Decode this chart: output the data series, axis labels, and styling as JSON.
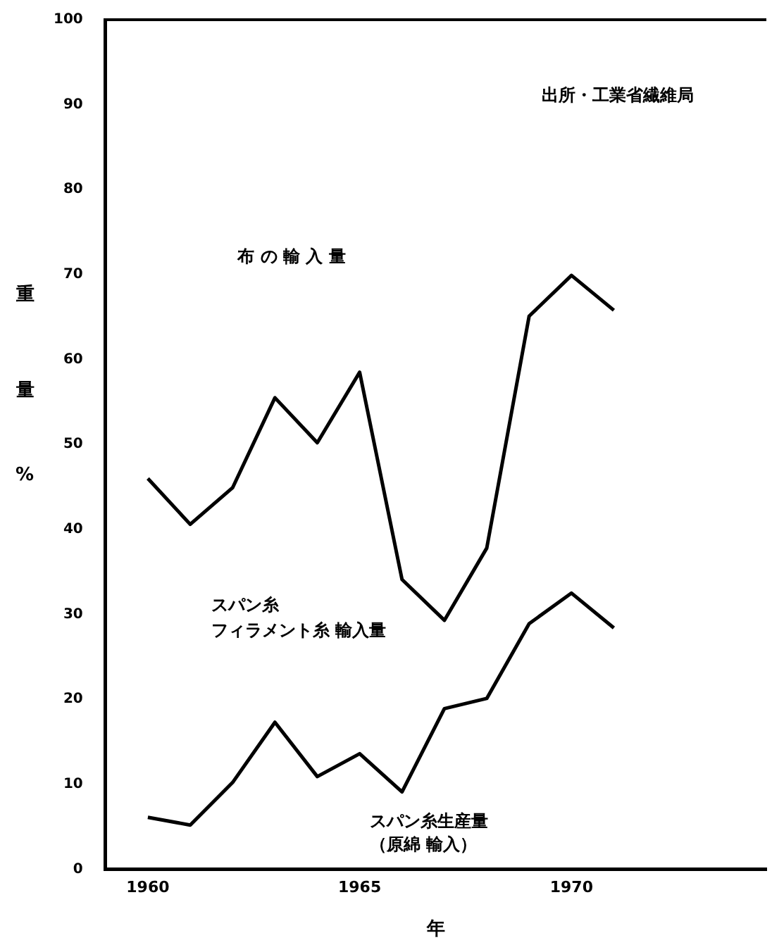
{
  "chart_data": {
    "type": "line",
    "ylabel": "重量%",
    "xlabel": "年",
    "x": [
      1960,
      1961,
      1962,
      1963,
      1964,
      1965,
      1966,
      1967,
      1968,
      1969,
      1970,
      1971
    ],
    "series": [
      {
        "color": "#000000",
        "values": [
          46,
          40.6,
          44.9,
          55.5,
          50.2,
          58.5,
          34.1,
          29.3,
          37.8,
          65.1,
          69.9,
          65.8
        ]
      },
      {
        "color": "#000000",
        "values": [
          6.1,
          5.2,
          10.2,
          17.3,
          10.9,
          13.6,
          9.1,
          18.9,
          20.1,
          28.9,
          32.5,
          28.4
        ]
      }
    ],
    "xlim": [
      1959,
      1974.6
    ],
    "xticks": [
      1960,
      1965,
      1970
    ],
    "ylim": [
      0,
      100
    ],
    "yticks": [
      0,
      10,
      20,
      30,
      40,
      50,
      60,
      70,
      80,
      90,
      100
    ],
    "grid": false,
    "legend": false,
    "marker": "none",
    "line_style": "solid",
    "annotations": [
      "出所・工業省繊維局",
      "布 の 輸 入 量",
      "スパン糸",
      "フィラメント糸 輸入量",
      "スパン糸生産量",
      "（原綿 輸入）"
    ]
  }
}
